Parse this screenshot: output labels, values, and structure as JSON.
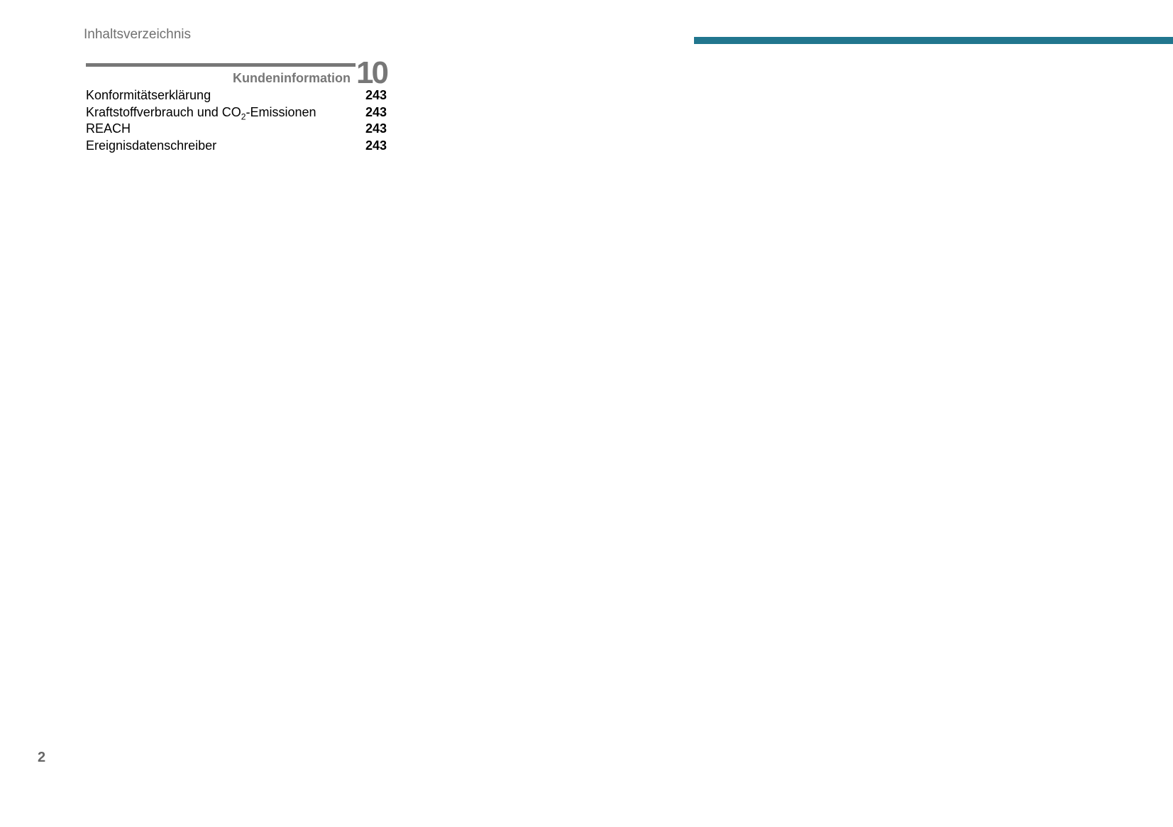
{
  "header": {
    "title": "Inhaltsverzeichnis",
    "accent_color": "#21768e"
  },
  "chapter": {
    "number": "10",
    "title": "Kundeninformation",
    "entries": [
      {
        "label": "Konformitätserklärung",
        "page": "243"
      },
      {
        "label_pre": "Kraftstoffverbrauch und CO",
        "label_sub": "2",
        "label_post": "-Emissionen",
        "page": "243"
      },
      {
        "label": "REACH",
        "page": "243"
      },
      {
        "label": "Ereignisdatenschreiber",
        "page": "243"
      }
    ]
  },
  "footer": {
    "page_number": "2"
  }
}
